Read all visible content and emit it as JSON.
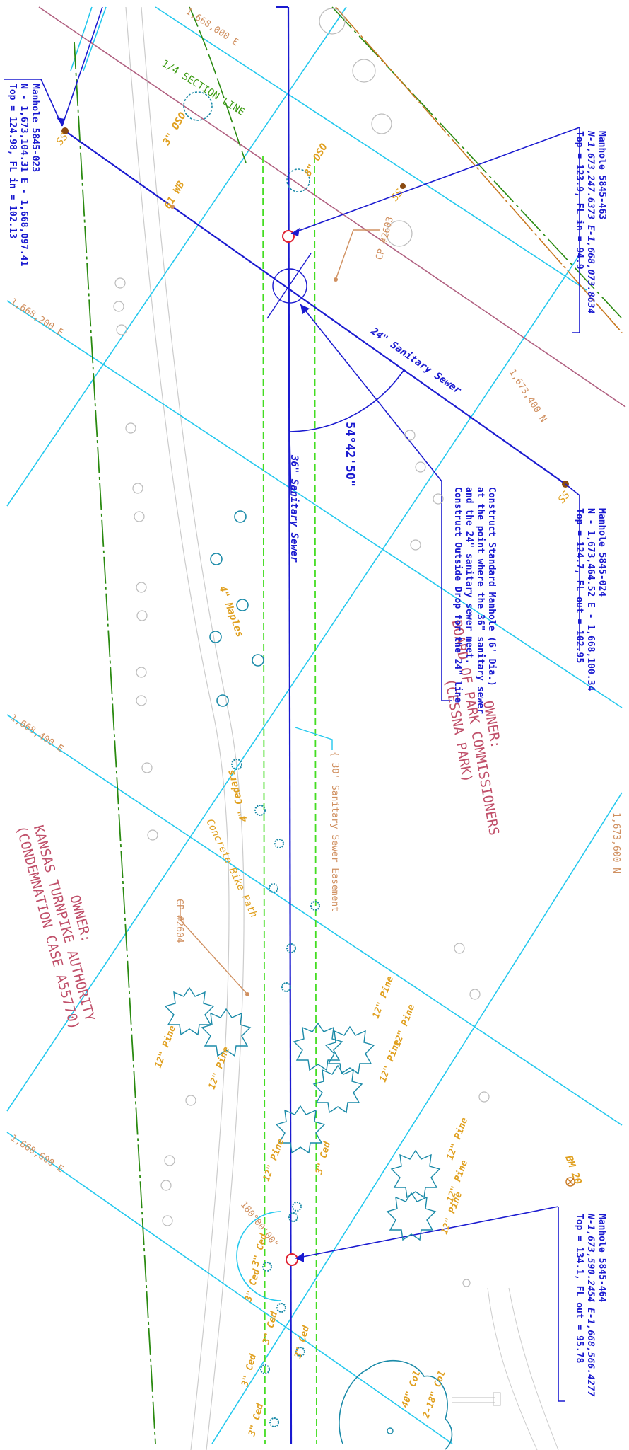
{
  "coordinates": {
    "e_1668000": "1,668,000 E",
    "e_1668200": "1,668,200 E",
    "e_1668400": "1,668,400 E",
    "e_1668600": "1,668,600 E",
    "n_1673400": "1,673,400 N",
    "n_1673600": "1,673,600 N"
  },
  "manholes": {
    "mh_023": {
      "name": "Manhole 5845-023",
      "coords": "N - 1,673,104.31   E - 1,668,097.41",
      "elev": "Top = 124.98, FL in = 102.13",
      "symbol": "SS"
    },
    "mh_463": {
      "name": "Manhole 5845-463",
      "coords": "N-1,673,247.6373  E-1,668,073.8634",
      "elev": "Top = 123.9, FL in = 94.9",
      "symbol": "SS"
    },
    "mh_024": {
      "name": "Manhole 5845-024",
      "coords": "N - 1,673,464.52   E - 1,668,100.34",
      "elev": "Top = 124.7, FL out = 102.95",
      "symbol": "SS"
    },
    "mh_464": {
      "name": "Manhole 5845-464",
      "coords": "N-1,673,590.2454  E-1,668,566.4277",
      "elev": "Top = 134.1, FL out = 95.78"
    }
  },
  "note": {
    "lines": [
      "Construct Standard Manhole (6' Dia.)",
      "at the point where the 36\" sanitary sewer",
      "and the 24\" sanitary sewer meet.",
      "Construct Outside Drop for the 24\" line"
    ]
  },
  "labels": {
    "sewer_24": "24\" Sanitary Sewer",
    "sewer_36": "36\" Sanitary Sewer",
    "angle": "54°42'50\"",
    "angle_180": "180°00'00\"",
    "section_line": "1/4 SECTION LINE",
    "easement": "{ 30' Sanitary Sewer Easement",
    "bike_path": "Concrete Bike Path",
    "cp_2603": "CP #2603",
    "cp_2604": "CP #2604",
    "bm_20": "BM 20",
    "maples": "4\" Maples",
    "cedars": "4\" Cedars",
    "osage_8": "8\" OSO",
    "osage_3": "3\" OSO",
    "wb_61": "61 WB",
    "pine": "12\" Pine",
    "ced": "3\" Ced",
    "col_40": "40\" Col",
    "col_218": "2-18\" Col"
  },
  "owners": {
    "park": {
      "heading": "OWNER:",
      "line1": "BOARD OF PARK COMMISSIONERS",
      "line2": "(CESSNA PARK)"
    },
    "turnpike": {
      "heading": "OWNER:",
      "line1": "KANSAS TURNPIKE AUTHORITY",
      "line2": "(CONDEMNATION CASE A55770)"
    }
  },
  "colors": {
    "sewer": "#1a1ad0",
    "grid": "#22c8ee",
    "easement": "#44dd22",
    "property": "#b06080",
    "section": "#2a8a10",
    "orange_line": "#c87820",
    "tree": "#1a8aa8",
    "label": "#e0a020",
    "manhole_new": "#e02030"
  }
}
